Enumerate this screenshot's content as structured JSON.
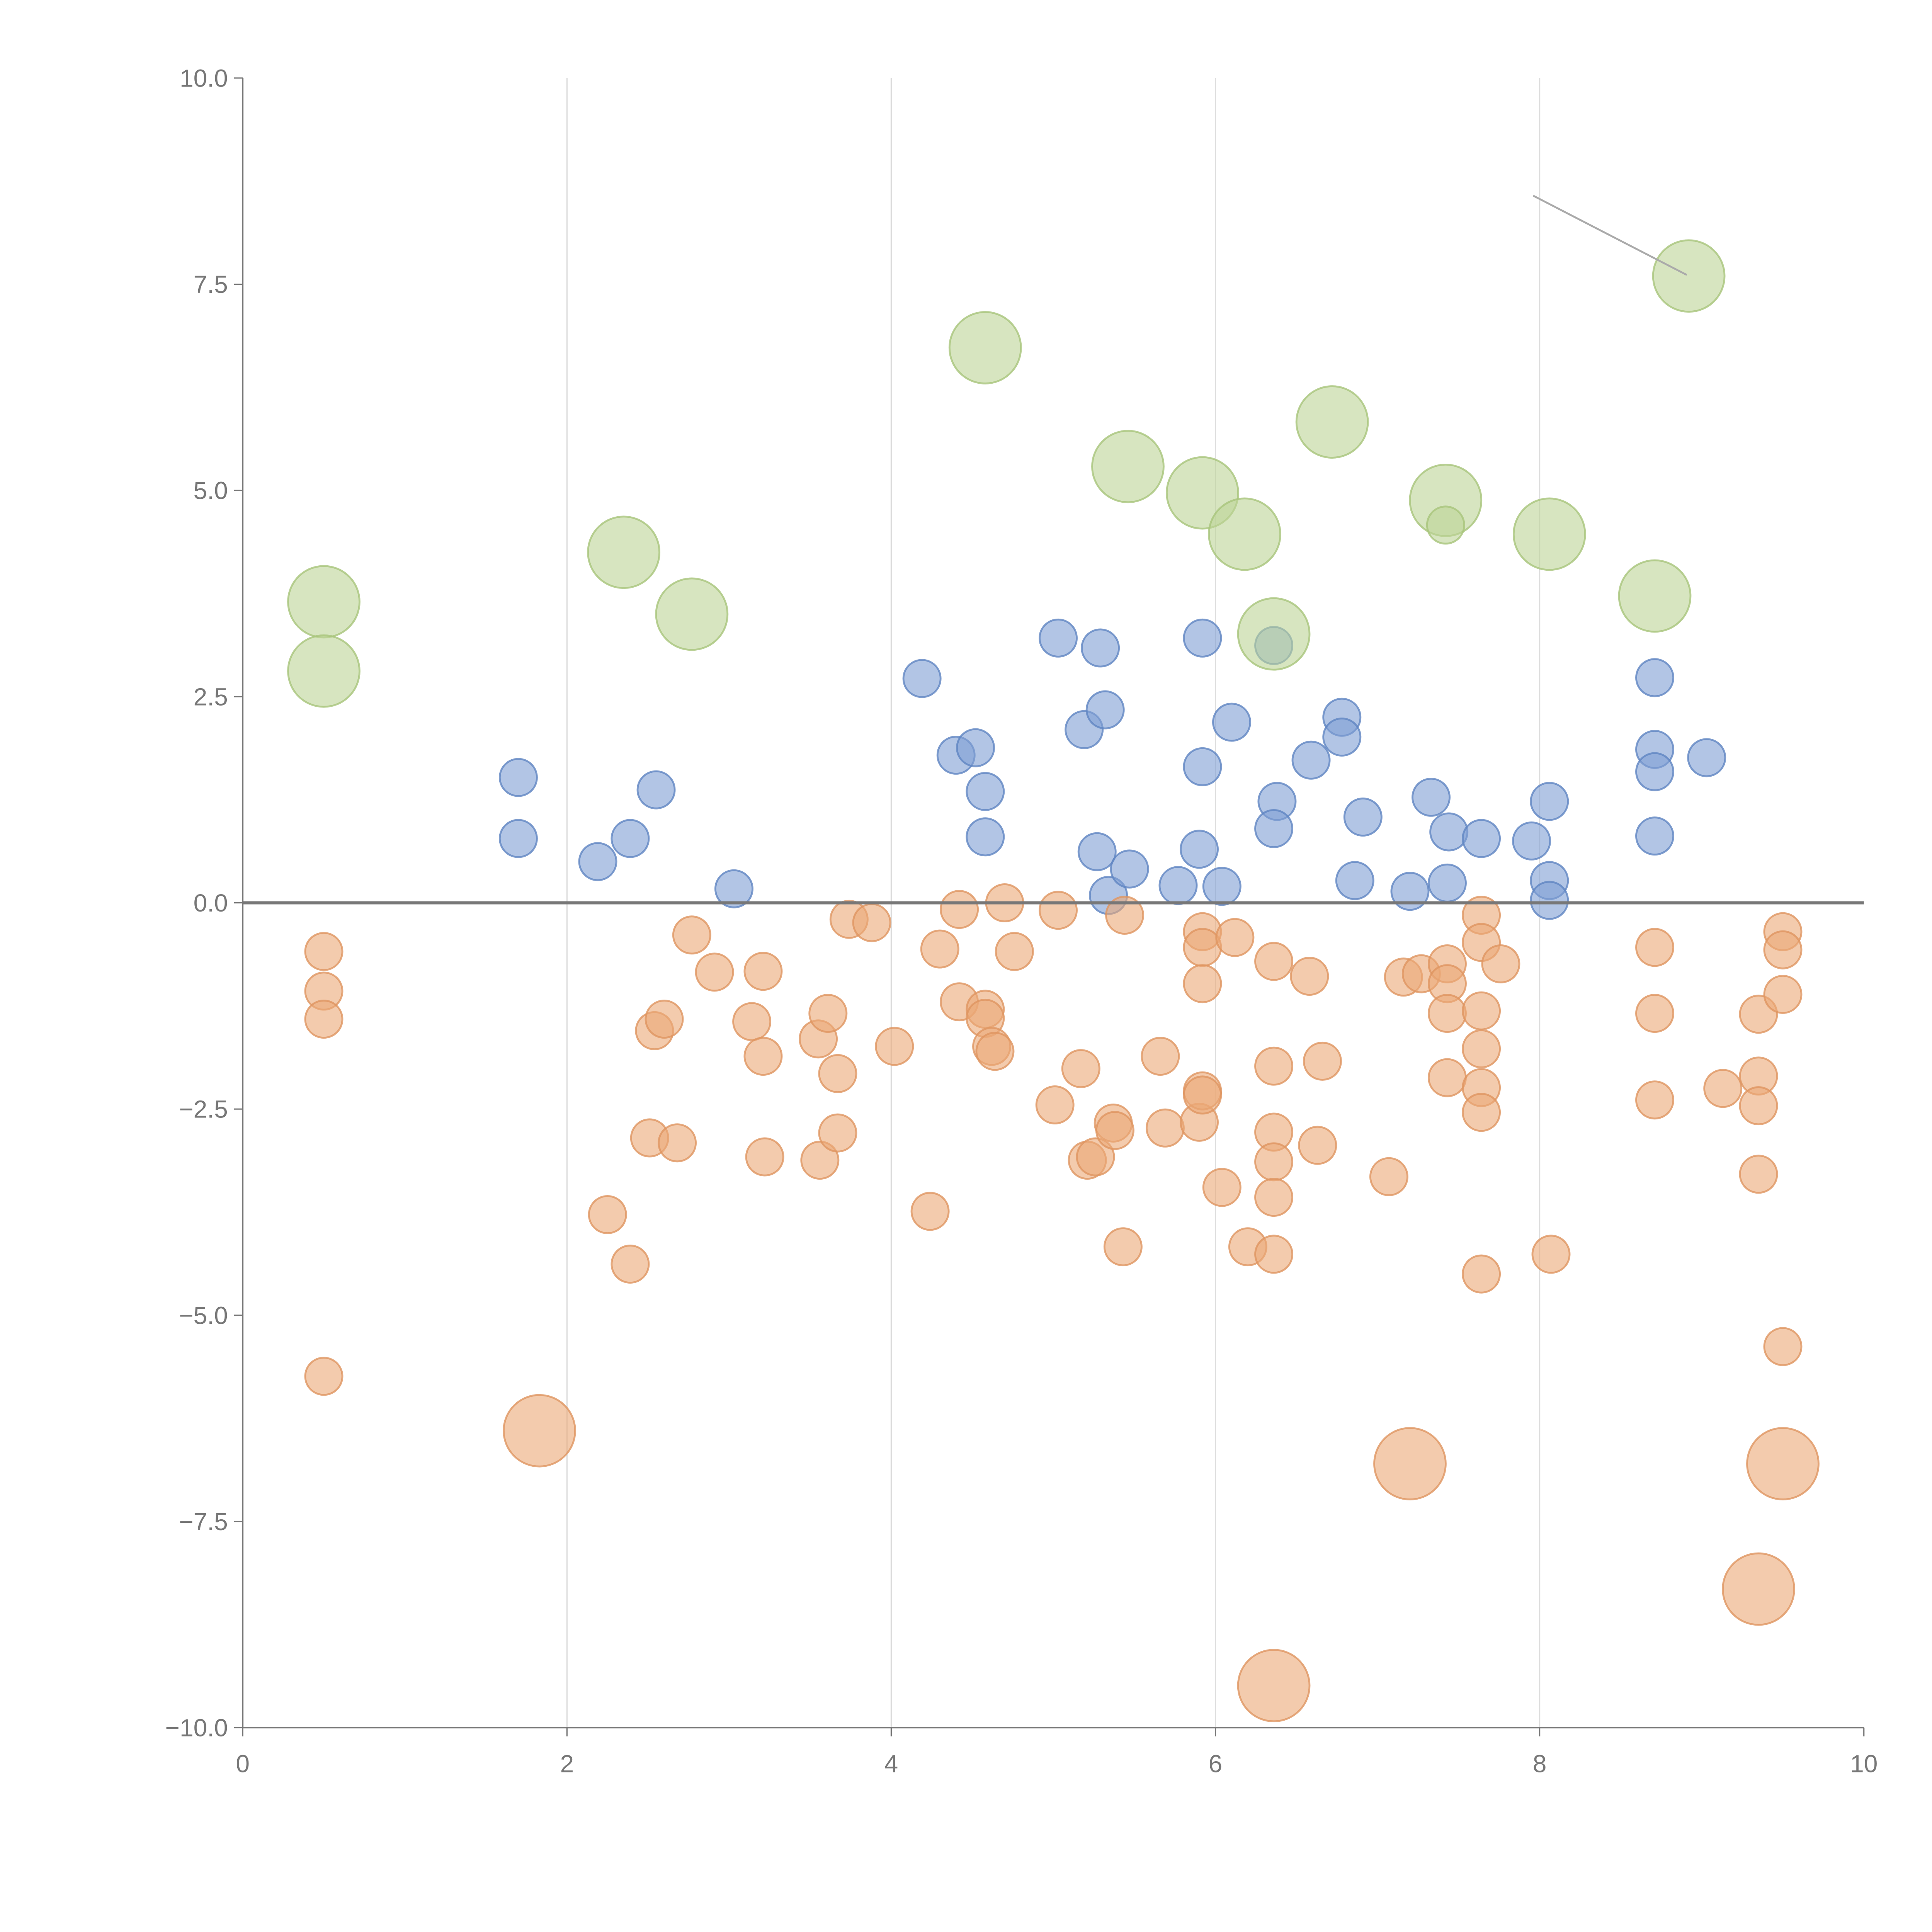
{
  "chart_data": {
    "type": "scatter",
    "title": "",
    "xlabel": "",
    "ylabel": "",
    "xlim": [
      0,
      10
    ],
    "ylim": [
      -10,
      10
    ],
    "grid": "vertical",
    "x_ticks": [
      "0",
      "2",
      "4",
      "6",
      "8",
      "10"
    ],
    "x_tick_values": [
      0,
      2,
      4,
      6,
      8,
      10
    ],
    "y_ticks": [
      "10.0",
      "7.5",
      "5.0",
      "2.5",
      "0.0",
      "−2.5",
      "−5.0",
      "−7.5",
      "−10.0"
    ],
    "y_tick_values": [
      10,
      7.5,
      5,
      2.5,
      0,
      -2.5,
      -5,
      -7.5,
      -10
    ],
    "point_format": [
      "x",
      "y",
      "relative_size"
    ],
    "series": [
      {
        "name": "blue",
        "color": "#7f9fd3",
        "stroke": "#5f84c2",
        "points": [
          [
            1.7,
            1.52,
            1
          ],
          [
            1.7,
            0.78,
            1
          ],
          [
            2.19,
            0.5,
            1
          ],
          [
            2.39,
            0.78,
            1
          ],
          [
            2.55,
            1.37,
            1
          ],
          [
            3.03,
            0.17,
            1
          ],
          [
            4.19,
            2.72,
            1
          ],
          [
            4.4,
            1.79,
            1
          ],
          [
            4.52,
            1.88,
            1
          ],
          [
            4.58,
            1.35,
            1
          ],
          [
            4.58,
            0.8,
            1
          ],
          [
            5.03,
            3.21,
            1
          ],
          [
            5.19,
            2.1,
            1
          ],
          [
            5.27,
            0.62,
            1
          ],
          [
            5.29,
            3.09,
            1
          ],
          [
            5.32,
            2.34,
            1
          ],
          [
            5.34,
            0.09,
            1
          ],
          [
            5.47,
            0.41,
            1
          ],
          [
            5.77,
            0.21,
            1
          ],
          [
            5.9,
            0.65,
            1
          ],
          [
            5.92,
            3.21,
            1
          ],
          [
            5.92,
            1.65,
            1
          ],
          [
            6.04,
            0.2,
            1
          ],
          [
            6.1,
            2.19,
            1
          ],
          [
            6.36,
            3.12,
            1
          ],
          [
            6.38,
            1.23,
            1
          ],
          [
            6.36,
            0.9,
            1
          ],
          [
            6.59,
            1.73,
            1
          ],
          [
            6.78,
            2.25,
            1
          ],
          [
            6.78,
            2.01,
            1
          ],
          [
            6.86,
            0.27,
            1
          ],
          [
            6.91,
            1.04,
            1
          ],
          [
            7.2,
            0.14,
            1
          ],
          [
            7.33,
            1.28,
            1
          ],
          [
            7.43,
            0.24,
            1
          ],
          [
            7.44,
            0.86,
            1
          ],
          [
            7.64,
            0.78,
            1
          ],
          [
            7.95,
            0.75,
            1
          ],
          [
            8.06,
            1.23,
            1
          ],
          [
            8.06,
            0.27,
            1
          ],
          [
            8.06,
            0.03,
            1
          ],
          [
            8.71,
            2.73,
            1
          ],
          [
            8.71,
            1.86,
            1
          ],
          [
            8.71,
            1.59,
            1
          ],
          [
            8.71,
            0.81,
            1
          ],
          [
            9.03,
            1.76,
            1
          ]
        ]
      },
      {
        "name": "orange",
        "color": "#eba877",
        "stroke": "#df9560",
        "points": [
          [
            0.5,
            -0.59,
            1
          ],
          [
            0.5,
            -1.07,
            1
          ],
          [
            0.5,
            -1.41,
            1
          ],
          [
            0.5,
            -5.74,
            1
          ],
          [
            2.25,
            -3.78,
            1
          ],
          [
            2.39,
            -4.38,
            1
          ],
          [
            2.51,
            -2.85,
            1
          ],
          [
            2.54,
            -1.55,
            1
          ],
          [
            2.6,
            -1.41,
            1
          ],
          [
            2.68,
            -2.91,
            1
          ],
          [
            2.77,
            -0.39,
            1
          ],
          [
            2.91,
            -0.84,
            1
          ],
          [
            3.14,
            -1.44,
            1
          ],
          [
            3.21,
            -0.83,
            1
          ],
          [
            3.21,
            -1.86,
            1
          ],
          [
            3.22,
            -3.08,
            1
          ],
          [
            3.55,
            -1.65,
            1
          ],
          [
            3.56,
            -3.12,
            1
          ],
          [
            3.61,
            -1.34,
            1
          ],
          [
            3.67,
            -2.07,
            1
          ],
          [
            3.67,
            -2.79,
            1
          ],
          [
            3.74,
            -0.2,
            1
          ],
          [
            3.88,
            -0.24,
            1
          ],
          [
            4.02,
            -1.74,
            1
          ],
          [
            4.24,
            -3.74,
            1
          ],
          [
            4.3,
            -0.56,
            1
          ],
          [
            4.42,
            -0.08,
            1
          ],
          [
            4.42,
            -1.2,
            1
          ],
          [
            4.58,
            -1.29,
            1
          ],
          [
            4.58,
            -1.4,
            1
          ],
          [
            4.62,
            -1.74,
            1
          ],
          [
            4.64,
            -1.8,
            1
          ],
          [
            4.7,
            0.0,
            1
          ],
          [
            4.76,
            -0.59,
            1
          ],
          [
            5.01,
            -2.45,
            1
          ],
          [
            5.03,
            -0.09,
            1
          ],
          [
            5.17,
            -2.01,
            1
          ],
          [
            5.21,
            -3.12,
            1
          ],
          [
            5.26,
            -3.08,
            1
          ],
          [
            5.37,
            -2.67,
            1
          ],
          [
            5.38,
            -2.76,
            1
          ],
          [
            5.43,
            -4.17,
            1
          ],
          [
            5.44,
            -0.15,
            1
          ],
          [
            5.66,
            -1.86,
            1
          ],
          [
            5.69,
            -2.73,
            1
          ],
          [
            5.9,
            -2.66,
            1
          ],
          [
            5.92,
            -0.35,
            1
          ],
          [
            5.92,
            -0.54,
            1
          ],
          [
            5.92,
            -0.98,
            1
          ],
          [
            5.92,
            -2.28,
            1
          ],
          [
            5.92,
            -2.33,
            1
          ],
          [
            6.04,
            -3.45,
            1
          ],
          [
            6.12,
            -0.42,
            1
          ],
          [
            6.2,
            -4.17,
            1
          ],
          [
            6.36,
            -0.71,
            1
          ],
          [
            6.36,
            -1.98,
            1
          ],
          [
            6.36,
            -2.78,
            1
          ],
          [
            6.36,
            -3.14,
            1
          ],
          [
            6.36,
            -3.57,
            1
          ],
          [
            6.36,
            -4.26,
            1
          ],
          [
            6.58,
            -0.89,
            1
          ],
          [
            6.63,
            -2.94,
            1
          ],
          [
            6.66,
            -1.92,
            1
          ],
          [
            7.07,
            -3.32,
            1
          ],
          [
            7.16,
            -0.9,
            1
          ],
          [
            7.27,
            -0.86,
            1
          ],
          [
            7.43,
            -0.74,
            1
          ],
          [
            7.43,
            -0.98,
            1
          ],
          [
            7.43,
            -1.34,
            1
          ],
          [
            7.43,
            -2.12,
            1
          ],
          [
            7.64,
            -0.15,
            1
          ],
          [
            7.64,
            -0.48,
            1
          ],
          [
            7.64,
            -1.31,
            1
          ],
          [
            7.64,
            -1.77,
            1
          ],
          [
            7.64,
            -2.24,
            1
          ],
          [
            7.64,
            -2.54,
            1
          ],
          [
            7.64,
            -4.5,
            1
          ],
          [
            7.76,
            -0.74,
            1
          ],
          [
            8.07,
            -4.26,
            1
          ],
          [
            8.71,
            -0.54,
            1
          ],
          [
            8.71,
            -1.34,
            1
          ],
          [
            8.71,
            -2.39,
            1
          ],
          [
            9.13,
            -2.25,
            1
          ],
          [
            9.35,
            -1.35,
            1
          ],
          [
            9.35,
            -2.1,
            1
          ],
          [
            9.35,
            -2.46,
            1
          ],
          [
            9.35,
            -3.29,
            1
          ],
          [
            9.5,
            -0.35,
            1
          ],
          [
            9.5,
            -0.57,
            1
          ],
          [
            9.5,
            -1.11,
            1
          ],
          [
            9.5,
            -5.38,
            1
          ],
          [
            1.83,
            -6.4,
            3.7
          ],
          [
            7.2,
            -6.8,
            3.7
          ],
          [
            9.5,
            -6.8,
            3.7
          ],
          [
            9.35,
            -8.32,
            3.7
          ],
          [
            6.36,
            -9.49,
            3.7
          ]
        ]
      },
      {
        "name": "green",
        "color": "#bcd496",
        "stroke": "#a8c47a",
        "points": [
          [
            0.5,
            3.65,
            3.7
          ],
          [
            0.5,
            2.81,
            3.7
          ],
          [
            2.35,
            4.25,
            3.7
          ],
          [
            2.77,
            3.5,
            3.7
          ],
          [
            4.58,
            6.73,
            3.7
          ],
          [
            5.46,
            5.29,
            3.7
          ],
          [
            5.92,
            4.97,
            3.7
          ],
          [
            6.18,
            4.47,
            3.7
          ],
          [
            6.36,
            3.26,
            3.7
          ],
          [
            6.72,
            5.83,
            3.7
          ],
          [
            7.42,
            4.88,
            3.7
          ],
          [
            8.06,
            4.47,
            3.7
          ],
          [
            8.71,
            3.72,
            3.7
          ],
          [
            8.92,
            7.6,
            3.7
          ],
          [
            7.42,
            4.58,
            1
          ]
        ]
      }
    ]
  }
}
